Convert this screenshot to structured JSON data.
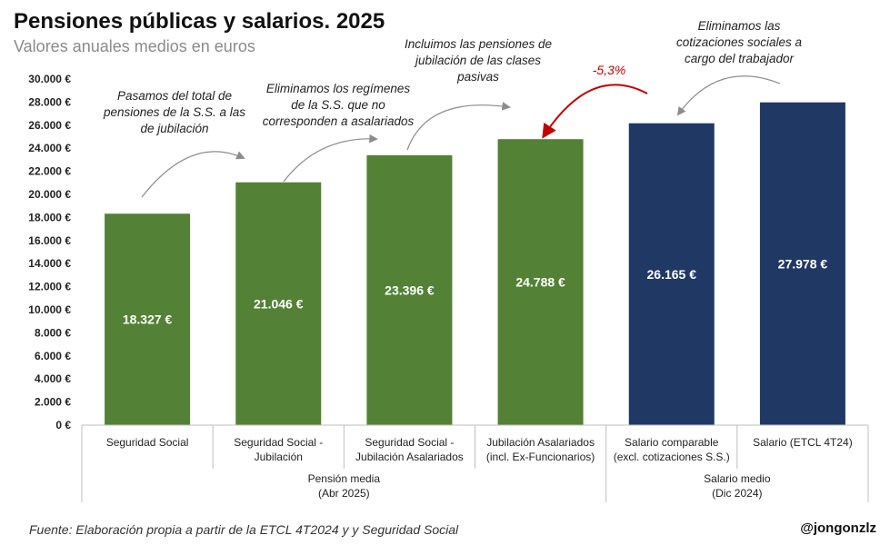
{
  "header": {
    "title": "Pensiones públicas y salarios. 2025",
    "subtitle": "Valores anuales medios en euros"
  },
  "footer": {
    "source": "Fuente: Elaboración propia a partir de la ETCL 4T2024 y y Seguridad Social",
    "handle": "@jongonzlz"
  },
  "chart_data": {
    "type": "bar",
    "title": "Pensiones públicas y salarios. 2025",
    "subtitle": "Valores anuales medios en euros",
    "categories": [
      [
        "Seguridad Social"
      ],
      [
        "Seguridad Social -",
        "Jubilación"
      ],
      [
        "Seguridad Social -",
        "Jubilación Asalariados"
      ],
      [
        "Jubilación Asalariados",
        "(incl. Ex-Funcionarios)"
      ],
      [
        "Salario comparable",
        "(excl. cotizaciones S.S.)"
      ],
      [
        "Salario (ETCL 4T24)"
      ]
    ],
    "values": [
      18327,
      21046,
      23396,
      24788,
      26165,
      27978
    ],
    "value_labels": [
      "18.327 €",
      "21.046 €",
      "23.396 €",
      "24.788 €",
      "26.165 €",
      "27.978 €"
    ],
    "bar_colors": [
      "#538135",
      "#538135",
      "#538135",
      "#538135",
      "#203864",
      "#203864"
    ],
    "group_labels": [
      {
        "lines": [
          "Pensión media",
          "(Abr 2025)"
        ],
        "start": 0,
        "end": 3
      },
      {
        "lines": [
          "Salario medio",
          "(Dic 2024)"
        ],
        "start": 4,
        "end": 5
      }
    ],
    "ylim": [
      0,
      30000
    ],
    "yticks": [
      0,
      2000,
      4000,
      6000,
      8000,
      10000,
      12000,
      14000,
      16000,
      18000,
      20000,
      22000,
      24000,
      26000,
      28000,
      30000
    ],
    "ytick_labels": [
      "0 €",
      "2.000 €",
      "4.000 €",
      "6.000 €",
      "8.000 €",
      "10.000 €",
      "12.000 €",
      "14.000 €",
      "16.000 €",
      "18.000 €",
      "20.000 €",
      "22.000 €",
      "24.000 €",
      "26.000 €",
      "28.000 €",
      "30.000 €"
    ],
    "grid": false,
    "annotations": [
      {
        "lines": [
          "Pasamos del total de",
          "pensiones de la S.S. a las",
          "de jubilación"
        ],
        "from": 0,
        "to": 1
      },
      {
        "lines": [
          "Eliminamos los regímenes",
          "de la S.S. que no",
          "corresponden a asalariados"
        ],
        "from": 1,
        "to": 2
      },
      {
        "lines": [
          "Incluimos las pensiones de",
          "jubilación de  las clases",
          "pasivas"
        ],
        "from": 2,
        "to": 3
      },
      {
        "lines": [
          "Eliminamos las",
          "cotizaciones sociales a",
          "cargo del trabajador"
        ],
        "from": 5,
        "to": 4
      }
    ],
    "highlight": {
      "label": "-5,3%",
      "from": 4,
      "to": 3,
      "color": "#c00000"
    }
  }
}
